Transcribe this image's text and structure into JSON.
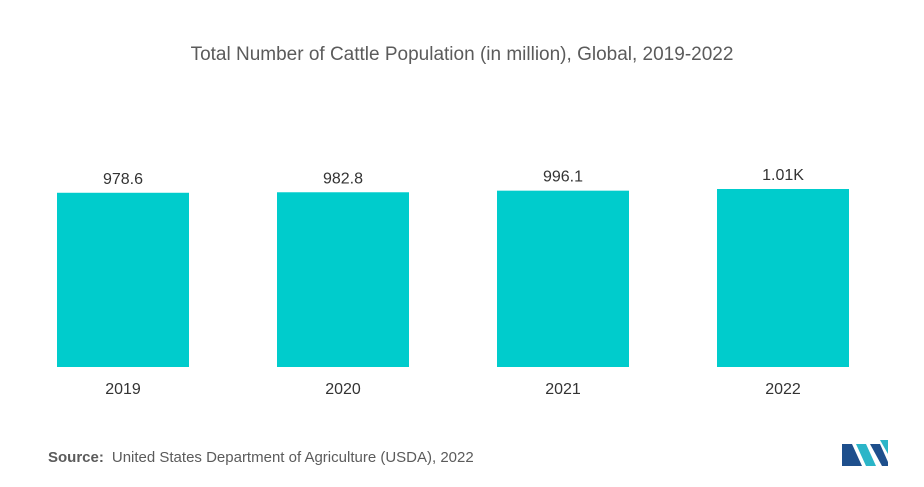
{
  "chart_data": {
    "type": "bar",
    "title": "Total Number of Cattle Population (in million), Global, 2019-2022",
    "categories": [
      "2019",
      "2020",
      "2021",
      "2022"
    ],
    "values": [
      978.6,
      982.8,
      996.1,
      1010
    ],
    "data_labels": [
      "978.6",
      "982.8",
      "996.1",
      "1.01K"
    ],
    "xlabel": "",
    "ylabel": "",
    "bar_color": "#00cccc",
    "grid": false,
    "legend": "none"
  },
  "source": {
    "label": "Source:",
    "text": "United States Department of Agriculture (USDA), 2022"
  },
  "logo": {
    "icon": "mordor-intelligence-logo-icon",
    "colors": [
      "#1e4f8c",
      "#2bb5c8"
    ]
  }
}
